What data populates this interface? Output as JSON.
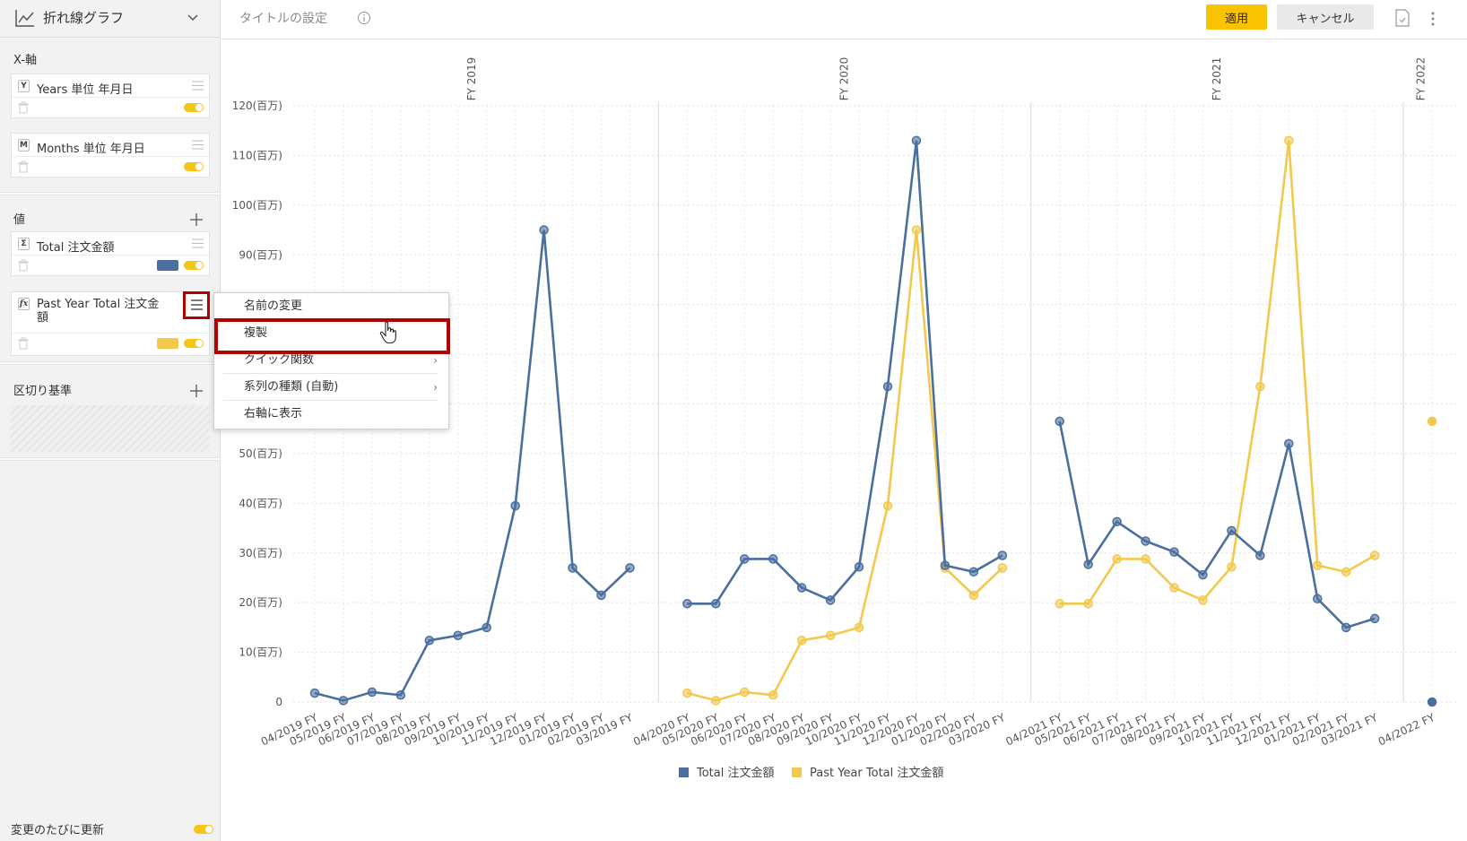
{
  "sidebar": {
    "chart_type": "折れ線グラフ",
    "x_axis_label": "X-軸",
    "x_fields": [
      {
        "badge": "Y",
        "name": "Years 単位 年月日"
      },
      {
        "badge": "M",
        "name": "Months 単位 年月日"
      }
    ],
    "values_label": "値",
    "value_fields": [
      {
        "badge": "Σ",
        "name": "Total 注文金額",
        "color": "#4a6f9e"
      },
      {
        "badge": "fx",
        "name": "Past Year Total 注文金額",
        "color": "#f2c94c"
      }
    ],
    "breakdown_label": "区切り基準",
    "auto_update_label": "変更のたびに更新"
  },
  "topbar": {
    "title_placeholder": "タイトルの設定",
    "apply": "適用",
    "cancel": "キャンセル"
  },
  "context_menu": {
    "items": [
      "名前の変更",
      "複製",
      "クイック関数",
      "系列の種類 (自動)",
      "右軸に表示"
    ]
  },
  "chart_data": {
    "type": "line",
    "y_ticks": [
      "0",
      "10(百万)",
      "20(百万)",
      "30(百万)",
      "40(百万)",
      "50(百万)",
      "60(百万)",
      "70(百万)",
      "80(百万)",
      "90(百万)",
      "100(百万)",
      "110(百万)",
      "120(百万)"
    ],
    "ylim": [
      0,
      120
    ],
    "grid": true,
    "legend_position": "bottom",
    "groups": [
      {
        "label": "FY 2019",
        "categories": [
          "04/2019 FY",
          "05/2019 FY",
          "06/2019 FY",
          "07/2019 FY",
          "08/2019 FY",
          "09/2019 FY",
          "10/2019 FY",
          "11/2019 FY",
          "12/2019 FY",
          "01/2019 FY",
          "02/2019 FY",
          "03/2019 FY"
        ],
        "series": [
          {
            "values": [
              1.8,
              0.3,
              2.0,
              1.4,
              12.4,
              13.4,
              15.0,
              39.5,
              95.0,
              27.0,
              21.5,
              27.0
            ]
          },
          {
            "values": []
          }
        ]
      },
      {
        "label": "FY 2020",
        "categories": [
          "04/2020 FY",
          "05/2020 FY",
          "06/2020 FY",
          "07/2020 FY",
          "08/2020 FY",
          "09/2020 FY",
          "10/2020 FY",
          "11/2020 FY",
          "12/2020 FY",
          "01/2020 FY",
          "02/2020 FY",
          "03/2020 FY"
        ],
        "series": [
          {
            "values": [
              19.8,
              19.8,
              28.8,
              28.8,
              23.0,
              20.5,
              27.2,
              63.5,
              113.0,
              27.5,
              26.2,
              29.5
            ]
          },
          {
            "values": [
              1.8,
              0.3,
              2.0,
              1.4,
              12.4,
              13.4,
              15.0,
              39.5,
              95.0,
              27.0,
              21.5,
              27.0
            ]
          }
        ]
      },
      {
        "label": "FY 2021",
        "categories": [
          "04/2021 FY",
          "05/2021 FY",
          "06/2021 FY",
          "07/2021 FY",
          "08/2021 FY",
          "09/2021 FY",
          "10/2021 FY",
          "11/2021 FY",
          "12/2021 FY",
          "01/2021 FY",
          "02/2021 FY",
          "03/2021 FY"
        ],
        "series": [
          {
            "values": [
              56.5,
              27.7,
              36.3,
              32.4,
              30.2,
              25.6,
              34.5,
              29.5,
              52.0,
              20.8,
              15.0,
              16.8
            ]
          },
          {
            "values": [
              19.8,
              19.8,
              28.8,
              28.8,
              23.0,
              20.5,
              27.2,
              63.5,
              113.0,
              27.5,
              26.2,
              29.5
            ]
          }
        ]
      },
      {
        "label": "FY 2022",
        "categories": [
          "04/2022 FY"
        ],
        "series": [
          {
            "values": [
              0.0
            ]
          },
          {
            "values": [
              56.5
            ]
          }
        ]
      }
    ],
    "series_names": [
      "Total 注文金額",
      "Past Year Total 注文金額"
    ],
    "series_colors": [
      "#4a6f9e",
      "#f2c94c"
    ]
  }
}
